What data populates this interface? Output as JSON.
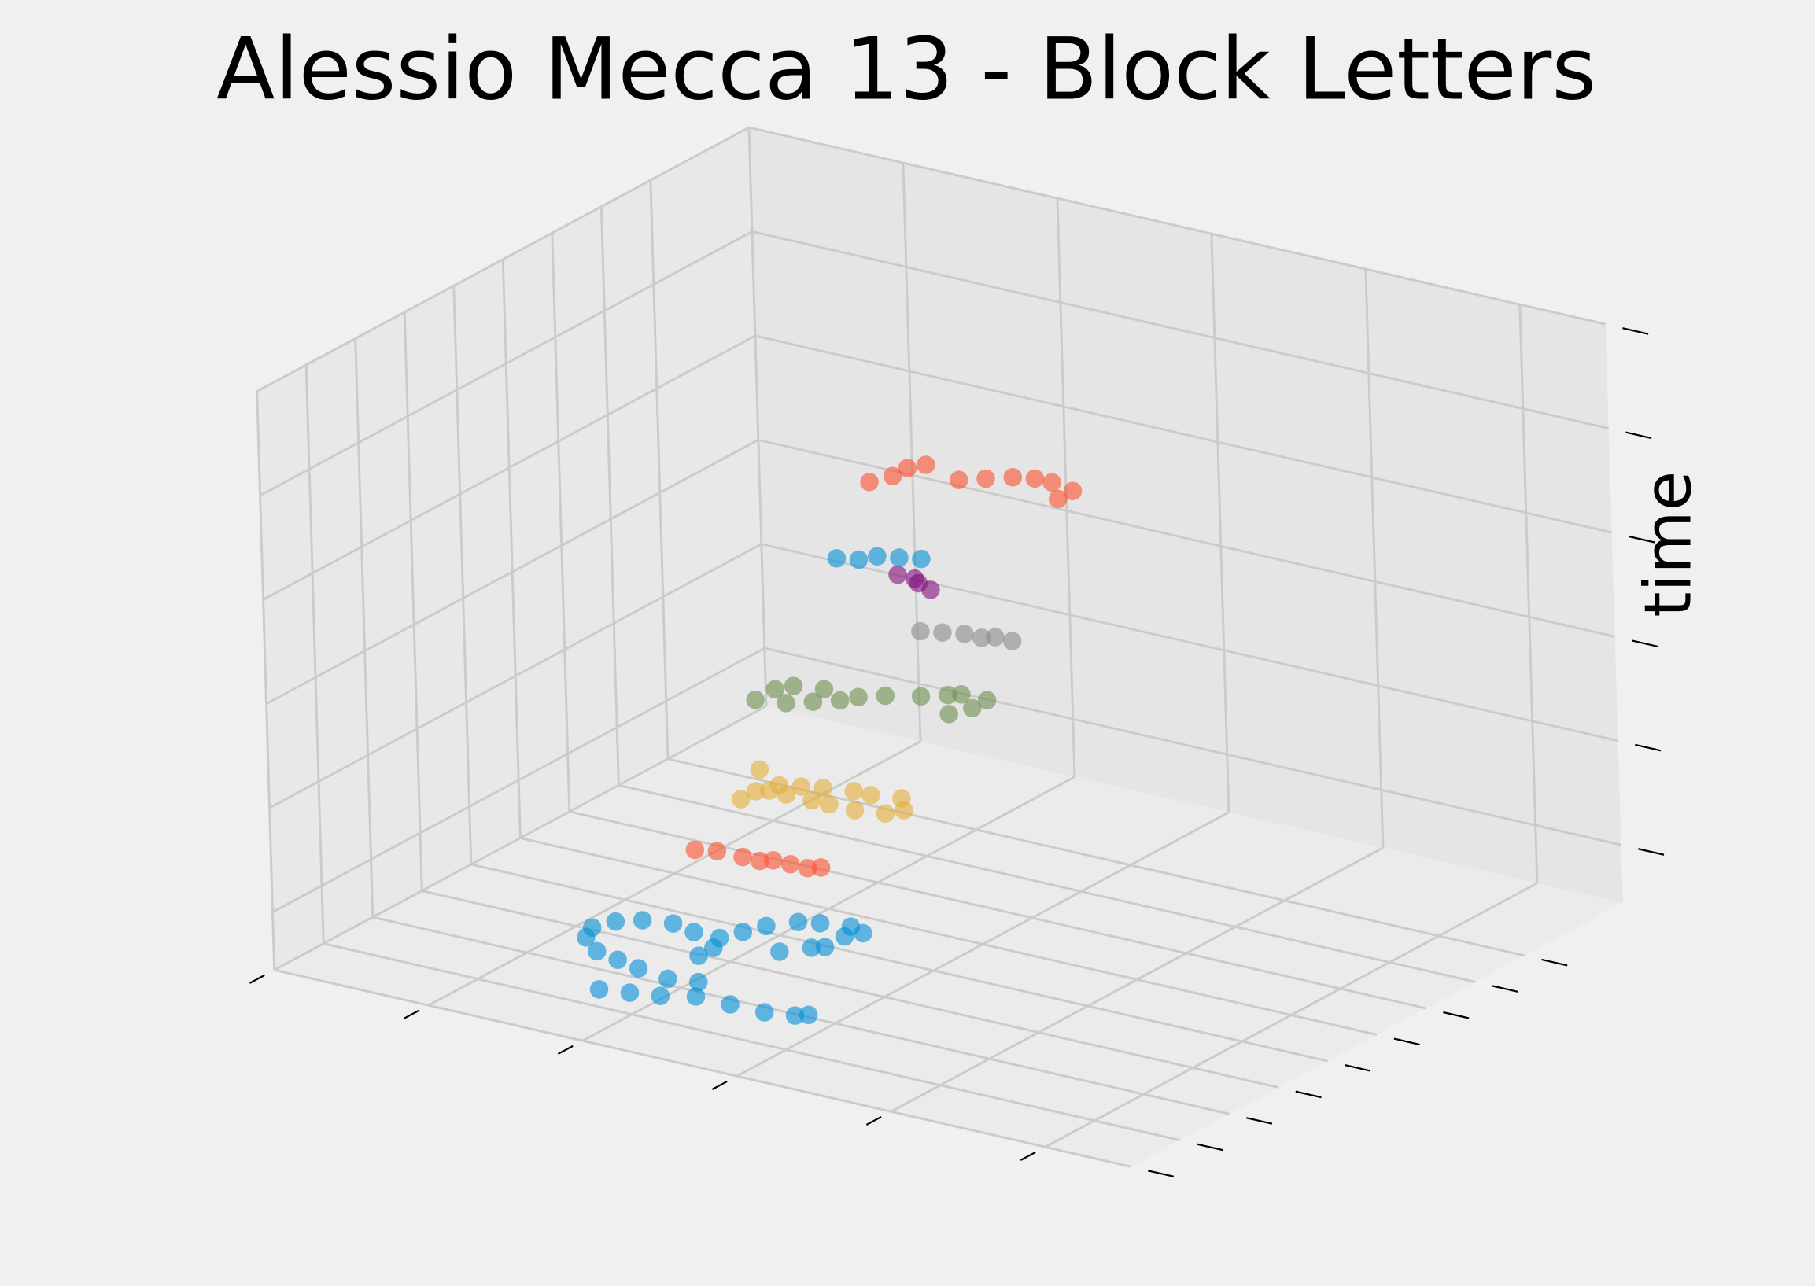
{
  "chart_data": {
    "type": "scatter3d",
    "title": "Alessio Mecca 13 - Block Letters",
    "zlabel": "time",
    "xlim": [
      0,
      1
    ],
    "ylim": [
      0,
      1
    ],
    "zlim": [
      0,
      1
    ],
    "xticks": [
      0,
      0.18,
      0.36,
      0.54,
      0.72,
      0.9
    ],
    "yticks": [
      0,
      0.1,
      0.2,
      0.3,
      0.4,
      0.5,
      0.6,
      0.7,
      0.8
    ],
    "zticks": [
      0.1,
      0.28,
      0.46,
      0.64,
      0.82,
      1.0
    ],
    "grid": true,
    "series": [
      {
        "color": "#008fd5",
        "x": [
          0.34,
          0.37,
          0.4,
          0.43,
          0.47,
          0.51,
          0.54,
          0.55,
          0.25,
          0.28,
          0.31,
          0.34,
          0.38,
          0.41,
          0.24,
          0.25,
          0.27,
          0.3,
          0.33,
          0.37,
          0.37,
          0.36,
          0.37,
          0.38,
          0.4,
          0.42,
          0.45,
          0.47,
          0.46,
          0.46,
          0.45,
          0.43
        ],
        "y": [
          0.07,
          0.08,
          0.09,
          0.11,
          0.11,
          0.11,
          0.12,
          0.13,
          0.2,
          0.17,
          0.16,
          0.15,
          0.14,
          0.15,
          0.23,
          0.26,
          0.28,
          0.29,
          0.28,
          0.22,
          0.25,
          0.28,
          0.31,
          0.34,
          0.37,
          0.38,
          0.39,
          0.38,
          0.36,
          0.32,
          0.31,
          0.28
        ],
        "z": [
          0.05,
          0.05,
          0.05,
          0.05,
          0.05,
          0.05,
          0.05,
          0.05,
          0.05,
          0.05,
          0.05,
          0.05,
          0.05,
          0.05,
          0.05,
          0.05,
          0.05,
          0.05,
          0.05,
          0.05,
          0.05,
          0.05,
          0.05,
          0.05,
          0.05,
          0.05,
          0.05,
          0.05,
          0.05,
          0.05,
          0.05,
          0.05
        ]
      },
      {
        "color": "#fc4f30",
        "x": [
          0.34,
          0.36,
          0.39,
          0.41,
          0.42,
          0.44,
          0.46,
          0.47
        ],
        "y": [
          0.27,
          0.28,
          0.28,
          0.28,
          0.29,
          0.29,
          0.29,
          0.3
        ],
        "z": [
          0.2,
          0.2,
          0.2,
          0.2,
          0.2,
          0.2,
          0.2,
          0.2
        ]
      },
      {
        "color": "#e5ae38",
        "x": [
          0.36,
          0.39,
          0.39,
          0.4,
          0.42,
          0.45,
          0.47,
          0.5,
          0.53,
          0.54,
          0.52,
          0.49,
          0.47,
          0.44,
          0.42,
          0.4
        ],
        "y": [
          0.37,
          0.31,
          0.28,
          0.32,
          0.32,
          0.32,
          0.32,
          0.32,
          0.33,
          0.35,
          0.38,
          0.37,
          0.37,
          0.36,
          0.35,
          0.34
        ],
        "z": [
          0.3,
          0.3,
          0.3,
          0.3,
          0.3,
          0.3,
          0.3,
          0.3,
          0.3,
          0.3,
          0.3,
          0.3,
          0.3,
          0.3,
          0.3,
          0.3
        ]
      },
      {
        "color": "#6d904f",
        "x": [
          0.34,
          0.34,
          0.35,
          0.38,
          0.41,
          0.39,
          0.37,
          0.42,
          0.44,
          0.47,
          0.49,
          0.5,
          0.53,
          0.53,
          0.52
        ],
        "y": [
          0.4,
          0.44,
          0.46,
          0.47,
          0.45,
          0.43,
          0.41,
          0.47,
          0.49,
          0.51,
          0.53,
          0.54,
          0.54,
          0.51,
          0.48
        ],
        "z": [
          0.4,
          0.4,
          0.4,
          0.4,
          0.4,
          0.4,
          0.4,
          0.4,
          0.4,
          0.4,
          0.4,
          0.4,
          0.4,
          0.4,
          0.4
        ]
      },
      {
        "color": "#8b8b8b",
        "x": [
          0.46,
          0.48,
          0.5,
          0.52,
          0.53,
          0.55
        ],
        "y": [
          0.53,
          0.54,
          0.55,
          0.55,
          0.56,
          0.56
        ],
        "z": [
          0.5,
          0.5,
          0.5,
          0.5,
          0.5,
          0.5
        ]
      },
      {
        "color": "#810f7c",
        "x": [
          0.4,
          0.42,
          0.43,
          0.45
        ],
        "y": [
          0.59,
          0.59,
          0.58,
          0.57
        ],
        "z": [
          0.55,
          0.55,
          0.55,
          0.55
        ]
      },
      {
        "color": "#008fd5",
        "x": [
          0.37,
          0.39,
          0.4,
          0.42,
          0.44
        ],
        "y": [
          0.52,
          0.53,
          0.55,
          0.56,
          0.57
        ],
        "z": [
          0.6,
          0.6,
          0.6,
          0.6,
          0.6
        ]
      },
      {
        "color": "#fc4f30",
        "x": [
          0.37,
          0.38,
          0.38,
          0.39,
          0.44,
          0.46,
          0.48,
          0.5,
          0.52,
          0.55,
          0.55
        ],
        "y": [
          0.59,
          0.62,
          0.65,
          0.67,
          0.65,
          0.67,
          0.69,
          0.7,
          0.7,
          0.69,
          0.66
        ],
        "z": [
          0.7,
          0.7,
          0.7,
          0.7,
          0.7,
          0.7,
          0.7,
          0.7,
          0.7,
          0.7,
          0.7
        ]
      }
    ]
  }
}
